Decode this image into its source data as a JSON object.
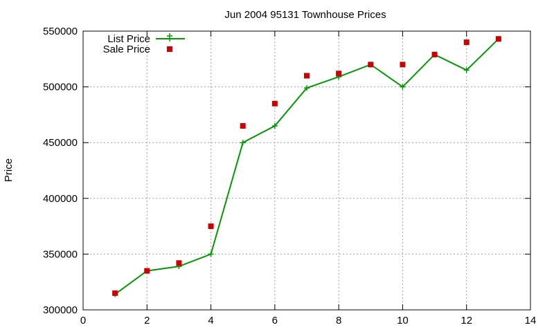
{
  "chart_data": {
    "type": "line",
    "title": "Jun 2004 95131 Townhouse Prices",
    "xlabel": "",
    "ylabel": "Price",
    "xlim": [
      0,
      14
    ],
    "ylim": [
      300000,
      550000
    ],
    "x_ticks": [
      0,
      2,
      4,
      6,
      8,
      10,
      12,
      14
    ],
    "y_ticks": [
      300000,
      350000,
      400000,
      450000,
      500000,
      550000
    ],
    "grid": true,
    "legend_position": "top-left",
    "series": [
      {
        "name": "List Price",
        "style": "line+plus-markers",
        "color": "#009900",
        "x": [
          1,
          2,
          3,
          4,
          5,
          6,
          7,
          8,
          9,
          10,
          11,
          12,
          13
        ],
        "y": [
          314000,
          335000,
          339000,
          350000,
          450000,
          465000,
          499000,
          509000,
          520000,
          500000,
          529000,
          515000,
          543000
        ]
      },
      {
        "name": "Sale Price",
        "style": "square-points",
        "color": "#cc0000",
        "x": [
          1,
          2,
          3,
          4,
          5,
          6,
          7,
          8,
          9,
          10,
          11,
          12,
          13
        ],
        "y": [
          315000,
          335000,
          342000,
          375000,
          465000,
          485000,
          510000,
          512000,
          520000,
          520000,
          529000,
          540000,
          543000
        ]
      }
    ]
  }
}
